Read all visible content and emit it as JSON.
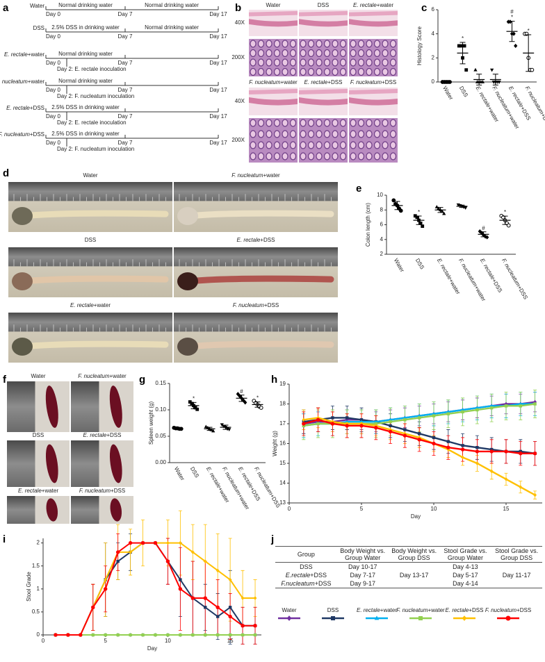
{
  "timeline": {
    "label": "a",
    "rows": [
      {
        "group": "Water",
        "segments": [
          "Normal drinking water",
          "Normal drinking water"
        ],
        "days": [
          "Day 0",
          "Day 7",
          "Day 17"
        ]
      },
      {
        "group": "DSS",
        "segments": [
          "2.5% DSS in drinking water",
          "Normal drinking water"
        ],
        "days": [
          "Day 0",
          "Day 7",
          "Day 17"
        ]
      },
      {
        "group": "E. rectale+water",
        "segments": [
          "Normal drinking water"
        ],
        "days": [
          "Day 0",
          "Day 7",
          "Day 17"
        ],
        "note": "Day 2: E. rectale inoculation"
      },
      {
        "group": "F. nucleatum+water",
        "segments": [
          "Normal drinking water"
        ],
        "days": [
          "Day 0",
          "Day 7",
          "Day 17"
        ],
        "note": "Day 2: F. nucleatum inoculation"
      },
      {
        "group": "E. rectale+DSS",
        "segments": [
          "2.5% DSS in drinking water"
        ],
        "days": [
          "Day 0",
          "Day 7",
          "Day 17"
        ],
        "note": "Day 2: E. rectale inoculation"
      },
      {
        "group": "F. nucleatum+DSS",
        "segments": [
          "2.5% DSS in drinking water"
        ],
        "days": [
          "Day 0",
          "Day 7",
          "Day 17"
        ],
        "note": "Day 2: F. nucleatum inoculation"
      }
    ]
  },
  "histology": {
    "label": "b",
    "groups": [
      "Water",
      "DSS",
      "E. rectale+water",
      "F. nucleatum+water",
      "E. rectale+DSS",
      "F. nucleatum+DSS"
    ],
    "magnifications": [
      "40X",
      "200X",
      "40X",
      "200X"
    ]
  },
  "colon_photos": {
    "label": "d",
    "captions": [
      "Water",
      "F. nucleatum+water",
      "DSS",
      "E. rectale+DSS",
      "E. rectale+water",
      "F. nucleatum+DSS"
    ]
  },
  "spleen_photos": {
    "label": "f",
    "captions": [
      "Water",
      "F. nucleatum+water",
      "DSS",
      "E. rectale+DSS",
      "E. rectale+water",
      "F. nucleatum+DSS"
    ]
  },
  "table": {
    "label": "j",
    "header": [
      "Group",
      "Body Weight vs. Group Water",
      "Body Weight vs. Group DSS",
      "Stool Grade vs. Group Water",
      "Stool Grade vs. Group DSS"
    ],
    "rows": [
      [
        "DSS",
        "Day 10-17",
        null,
        "Day 4-13",
        null
      ],
      [
        "E.rectale+DSS",
        "Day 7-17",
        "Day 13-17",
        "Day 5-17",
        "Day 11-17"
      ],
      [
        "F.nucleatum+DSS",
        "Day 9-17",
        null,
        "Day 4-14",
        null
      ]
    ]
  },
  "chart_data": [
    {
      "type": "dot",
      "label": "c",
      "ylabel": "Histology Score",
      "categories": [
        "Water",
        "DSS",
        "E. rectale+water",
        "F. nucleatum+water",
        "E. rectale+DSS",
        "F. nucleatum+DSS"
      ],
      "markers": [
        "circle",
        "square",
        "triangle",
        "triangle-down",
        "diamond",
        "circle-open"
      ],
      "color": "#000000",
      "means": [
        0,
        2.4,
        0.2,
        0.2,
        4.2,
        2.4
      ],
      "sd": [
        0,
        0.89,
        0.45,
        0.45,
        0.84,
        1.52
      ],
      "points": [
        [
          0,
          0,
          0,
          0,
          0
        ],
        [
          3,
          3,
          2,
          3,
          1
        ],
        [
          1,
          0,
          0,
          0,
          0
        ],
        [
          1,
          0,
          0,
          0,
          0
        ],
        [
          5,
          5,
          4,
          4,
          3
        ],
        [
          4,
          4,
          2,
          1,
          1
        ]
      ],
      "stars": [
        null,
        "*",
        null,
        null,
        "*",
        "*"
      ],
      "hashes": [
        null,
        null,
        null,
        null,
        "#",
        null
      ],
      "ylim": [
        0,
        6
      ],
      "yticks": [
        0,
        2,
        4,
        6
      ]
    },
    {
      "type": "dot",
      "label": "e",
      "ylabel": "Colon length (cm)",
      "categories": [
        "Water",
        "DSS",
        "E. rectale+water",
        "F. nucleatum+water",
        "E. rectale+DSS",
        "F. nucleatum+DSS"
      ],
      "markers": [
        "circle",
        "square",
        "triangle",
        "triangle-down",
        "diamond",
        "circle-open"
      ],
      "color": "#000000",
      "means": [
        8.6,
        6.6,
        8.0,
        8.5,
        4.7,
        6.6
      ],
      "sd": [
        0.55,
        0.58,
        0.34,
        0.16,
        0.34,
        0.57
      ],
      "points": [
        [
          9.3,
          8.8,
          8.6,
          8.2,
          7.9
        ],
        [
          7.2,
          7.0,
          6.6,
          6.2,
          5.8
        ],
        [
          8.4,
          8.2,
          8.0,
          7.8,
          7.5
        ],
        [
          8.7,
          8.6,
          8.5,
          8.4,
          8.3
        ],
        [
          5.1,
          4.9,
          4.6,
          4.4,
          4.3
        ],
        [
          7.2,
          7.0,
          6.6,
          6.2,
          5.9
        ]
      ],
      "stars": [
        null,
        "*",
        null,
        null,
        null,
        "*"
      ],
      "hashes": [
        null,
        null,
        null,
        null,
        "#",
        null
      ],
      "ylim": [
        2,
        10
      ],
      "yticks": [
        2,
        4,
        6,
        8,
        10
      ]
    },
    {
      "type": "dot",
      "label": "g",
      "ylabel": "Spleen weight (g)",
      "categories": [
        "Water",
        "DSS",
        "E. rectale+water",
        "F. nucleatum+water",
        "E. rectale+DSS",
        "F. nucleatum+DSS"
      ],
      "markers": [
        "circle",
        "square",
        "triangle",
        "triangle-down",
        "diamond",
        "circle-open"
      ],
      "color": "#000000",
      "means": [
        0.065,
        0.108,
        0.064,
        0.067,
        0.122,
        0.11
      ],
      "sd": [
        0.001,
        0.006,
        0.003,
        0.004,
        0.006,
        0.005
      ],
      "points": [
        [
          0.066,
          0.065,
          0.065,
          0.064,
          0.064
        ],
        [
          0.115,
          0.112,
          0.108,
          0.104,
          0.101
        ],
        [
          0.068,
          0.066,
          0.064,
          0.062,
          0.06
        ],
        [
          0.072,
          0.069,
          0.067,
          0.064,
          0.063
        ],
        [
          0.13,
          0.126,
          0.122,
          0.118,
          0.114
        ],
        [
          0.117,
          0.113,
          0.11,
          0.106,
          0.104
        ]
      ],
      "stars": [
        null,
        "*",
        null,
        null,
        null,
        "*"
      ],
      "hashes": [
        null,
        null,
        null,
        null,
        "#",
        null
      ],
      "ylim": [
        0,
        0.15
      ],
      "yticks": [
        {
          "value": 0,
          "label": "0.00"
        },
        0.05,
        {
          "value": 0.1,
          "label": "0.10"
        },
        0.15
      ]
    },
    {
      "type": "line",
      "label": "h",
      "xlabel": "Day",
      "ylabel": "Weight (g)",
      "x": [
        1,
        2,
        3,
        4,
        5,
        6,
        7,
        8,
        9,
        10,
        11,
        12,
        13,
        14,
        15,
        16,
        17
      ],
      "series": [
        {
          "name": "Water",
          "color": "#7030a0",
          "marker": "diamond",
          "values": [
            17.0,
            17.1,
            17.1,
            17.2,
            17.2,
            17.1,
            17.2,
            17.3,
            17.4,
            17.5,
            17.6,
            17.7,
            17.8,
            17.9,
            18.0,
            18.0,
            18.1
          ],
          "errors": [
            0.5,
            0.5,
            0.5,
            0.5,
            0.5,
            0.5,
            0.5,
            0.5,
            0.5,
            0.5,
            0.5,
            0.5,
            0.5,
            0.5,
            0.5,
            0.5,
            0.5
          ]
        },
        {
          "name": "DSS",
          "color": "#1f3864",
          "marker": "square",
          "values": [
            17.1,
            17.2,
            17.3,
            17.3,
            17.2,
            17.1,
            16.9,
            16.7,
            16.5,
            16.3,
            16.1,
            15.9,
            15.8,
            15.7,
            15.6,
            15.6,
            15.5
          ],
          "errors": [
            0.6,
            0.6,
            0.6,
            0.6,
            0.6,
            0.6,
            0.6,
            0.6,
            0.6,
            0.6,
            0.6,
            0.6,
            0.6,
            0.6,
            0.6,
            0.6,
            0.6
          ]
        },
        {
          "name": "E. rectale+water",
          "color": "#00b0f0",
          "marker": "triangle",
          "values": [
            16.9,
            17.0,
            17.0,
            17.1,
            17.1,
            17.1,
            17.2,
            17.3,
            17.4,
            17.5,
            17.6,
            17.7,
            17.8,
            17.9,
            17.9,
            18.0,
            18.0
          ],
          "errors": [
            0.6,
            0.6,
            0.6,
            0.6,
            0.6,
            0.6,
            0.6,
            0.6,
            0.6,
            0.6,
            0.6,
            0.6,
            0.6,
            0.6,
            0.6,
            0.6,
            0.6
          ]
        },
        {
          "name": "F. nucleatum+water",
          "color": "#92d050",
          "marker": "square",
          "values": [
            16.9,
            17.0,
            17.0,
            17.0,
            17.0,
            17.0,
            17.1,
            17.2,
            17.3,
            17.4,
            17.5,
            17.6,
            17.7,
            17.8,
            17.9,
            17.9,
            18.0
          ],
          "errors": [
            0.7,
            0.7,
            0.7,
            0.7,
            0.7,
            0.7,
            0.7,
            0.7,
            0.7,
            0.7,
            0.7,
            0.7,
            0.7,
            0.7,
            0.7,
            0.7,
            0.7
          ]
        },
        {
          "name": "E. rectale+DSS",
          "color": "#ffc000",
          "marker": "diamond",
          "values": [
            17.2,
            17.3,
            17.1,
            17.0,
            17.0,
            16.9,
            16.7,
            16.5,
            16.3,
            16.0,
            15.7,
            15.3,
            15.0,
            14.6,
            14.2,
            13.8,
            13.4
          ],
          "errors": [
            0.5,
            0.5,
            0.5,
            0.5,
            0.5,
            0.5,
            0.5,
            0.5,
            0.5,
            0.4,
            0.4,
            0.4,
            0.4,
            0.4,
            0.3,
            0.3,
            0.2
          ]
        },
        {
          "name": "F. nucleatum+DSS",
          "color": "#ff0000",
          "marker": "circle",
          "values": [
            17.0,
            17.2,
            17.0,
            16.9,
            16.9,
            16.8,
            16.6,
            16.4,
            16.2,
            16.0,
            15.8,
            15.7,
            15.6,
            15.6,
            15.6,
            15.5,
            15.5
          ],
          "errors": [
            0.6,
            0.6,
            0.6,
            0.6,
            0.6,
            0.6,
            0.6,
            0.6,
            0.6,
            0.6,
            0.6,
            0.6,
            0.6,
            0.6,
            0.6,
            0.6,
            0.6
          ]
        }
      ],
      "xlim": [
        0,
        17.5
      ],
      "xticks": [
        0,
        5,
        10,
        15
      ],
      "ylim": [
        13,
        19
      ],
      "yticks": [
        13,
        14,
        15,
        16,
        17,
        18,
        19
      ]
    },
    {
      "type": "line",
      "label": "i",
      "xlabel": "Day",
      "ylabel": "Stool Grade",
      "x": [
        1,
        2,
        3,
        4,
        5,
        6,
        7,
        8,
        9,
        10,
        11,
        12,
        13,
        14,
        15,
        16,
        17
      ],
      "series": [
        {
          "name": "Water",
          "color": "#7030a0",
          "marker": "diamond",
          "values": [
            0,
            0,
            0,
            0,
            0,
            0,
            0,
            0,
            0,
            0,
            0,
            0,
            0,
            0,
            0,
            0,
            0
          ]
        },
        {
          "name": "DSS",
          "color": "#1f3864",
          "marker": "square",
          "values": [
            0,
            0,
            0,
            0.6,
            1.2,
            1.6,
            1.8,
            2,
            2,
            1.6,
            1.2,
            0.8,
            0.6,
            0.4,
            0.6,
            0.2,
            0.2
          ],
          "errors": [
            0,
            0,
            0,
            0.5,
            0.8,
            0.4,
            0.4,
            0,
            0,
            0.5,
            0.8,
            0.8,
            0.5,
            0.5,
            0.8,
            0.4,
            0.4
          ]
        },
        {
          "name": "E. rectale+water",
          "color": "#00b0f0",
          "marker": "triangle",
          "values": [
            0,
            0,
            0,
            0,
            0,
            0,
            0,
            0,
            0,
            0,
            0,
            0,
            0,
            0,
            0,
            0,
            0
          ]
        },
        {
          "name": "F. nucleatum+water",
          "color": "#92d050",
          "marker": "square",
          "values": [
            0,
            0,
            0,
            0,
            0,
            0,
            0,
            0,
            0,
            0,
            0,
            0,
            0,
            0,
            0,
            0,
            0
          ]
        },
        {
          "name": "E. rectale+DSS",
          "color": "#ffc000",
          "marker": "diamond",
          "values": [
            0,
            0,
            0,
            0.6,
            1.2,
            1.8,
            1.8,
            2,
            2,
            2,
            2,
            1.8,
            1.6,
            1.4,
            1.2,
            0.8,
            0.8
          ],
          "errors": [
            0,
            0,
            0,
            0.5,
            0.8,
            0.6,
            0.5,
            0.5,
            0,
            0.5,
            0.7,
            0.6,
            0.8,
            0.8,
            0.9,
            0.6,
            0.4
          ]
        },
        {
          "name": "F. nucleatum+DSS",
          "color": "#ff0000",
          "marker": "circle",
          "values": [
            0,
            0,
            0,
            0.6,
            1.0,
            1.8,
            2,
            2,
            2,
            1.6,
            1.0,
            0.8,
            0.8,
            0.6,
            0.4,
            0.2,
            0.2
          ],
          "errors": [
            0,
            0,
            0,
            0.5,
            0.5,
            0.4,
            0,
            0,
            0,
            0.5,
            0.9,
            0.8,
            0.8,
            0.6,
            0.5,
            0.4,
            0.4
          ]
        }
      ],
      "xlim": [
        0,
        17.5
      ],
      "xticks": [
        0,
        5,
        10,
        15
      ],
      "ylim": [
        0,
        2.1
      ],
      "yticks": [
        0,
        0.5,
        1,
        1.5,
        2
      ]
    }
  ]
}
